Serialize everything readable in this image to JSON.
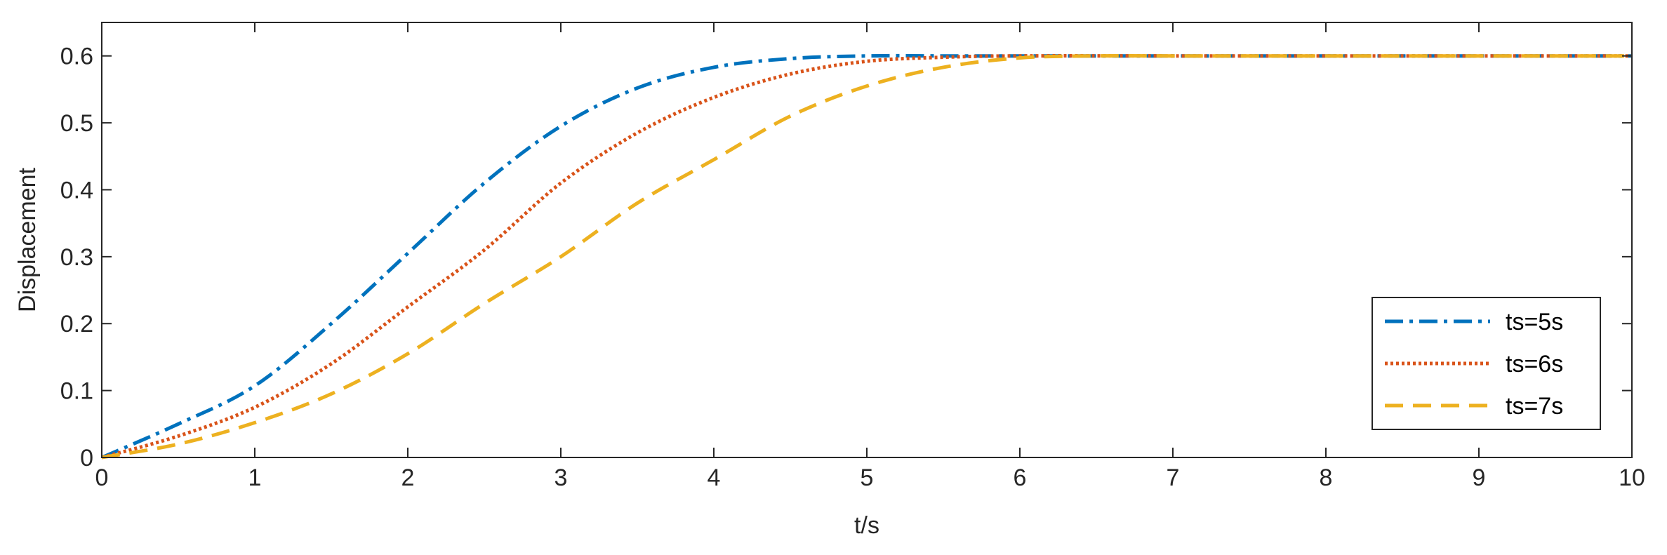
{
  "chart_data": {
    "type": "line",
    "xlabel": "t/s",
    "ylabel": "Displacement",
    "xlim": [
      0,
      10
    ],
    "ylim": [
      0,
      0.65
    ],
    "xticks": [
      0,
      1,
      2,
      3,
      4,
      5,
      6,
      7,
      8,
      9,
      10
    ],
    "yticks": [
      0,
      0.1,
      0.2,
      0.3,
      0.4,
      0.5,
      0.6
    ],
    "xtick_labels": [
      "0",
      "1",
      "2",
      "3",
      "4",
      "5",
      "6",
      "7",
      "8",
      "9",
      "10"
    ],
    "ytick_labels": [
      "0",
      "0.1",
      "0.2",
      "0.3",
      "0.4",
      "0.5",
      "0.6"
    ],
    "grid": false,
    "legend_position": "lower-right",
    "series": [
      {
        "name": "ts=5s",
        "color": "#0072BD",
        "line_style": "dash-dot",
        "x": [
          0,
          0.5,
          1,
          1.5,
          2,
          2.5,
          3,
          3.5,
          4,
          4.5,
          5,
          5.5,
          6,
          7,
          8,
          9,
          10
        ],
        "y": [
          0,
          0.05,
          0.107,
          0.2,
          0.305,
          0.41,
          0.495,
          0.552,
          0.583,
          0.596,
          0.6,
          0.6,
          0.6,
          0.6,
          0.6,
          0.6,
          0.6
        ]
      },
      {
        "name": "ts=6s",
        "color": "#D95319",
        "line_style": "dotted",
        "x": [
          0,
          0.5,
          1,
          1.5,
          2,
          2.5,
          3,
          3.5,
          4,
          4.5,
          5,
          5.5,
          6,
          7,
          8,
          9,
          10
        ],
        "y": [
          0,
          0.032,
          0.075,
          0.14,
          0.225,
          0.31,
          0.41,
          0.485,
          0.538,
          0.573,
          0.592,
          0.598,
          0.6,
          0.6,
          0.6,
          0.6,
          0.6
        ]
      },
      {
        "name": "ts=7s",
        "color": "#EDB120",
        "line_style": "dashed",
        "x": [
          0,
          0.5,
          1,
          1.5,
          2,
          2.5,
          3,
          3.5,
          4,
          4.5,
          5,
          5.5,
          6,
          6.5,
          7,
          8,
          9,
          10
        ],
        "y": [
          0,
          0.02,
          0.052,
          0.095,
          0.155,
          0.23,
          0.3,
          0.38,
          0.445,
          0.51,
          0.555,
          0.583,
          0.597,
          0.6,
          0.6,
          0.6,
          0.6,
          0.6
        ]
      }
    ]
  }
}
